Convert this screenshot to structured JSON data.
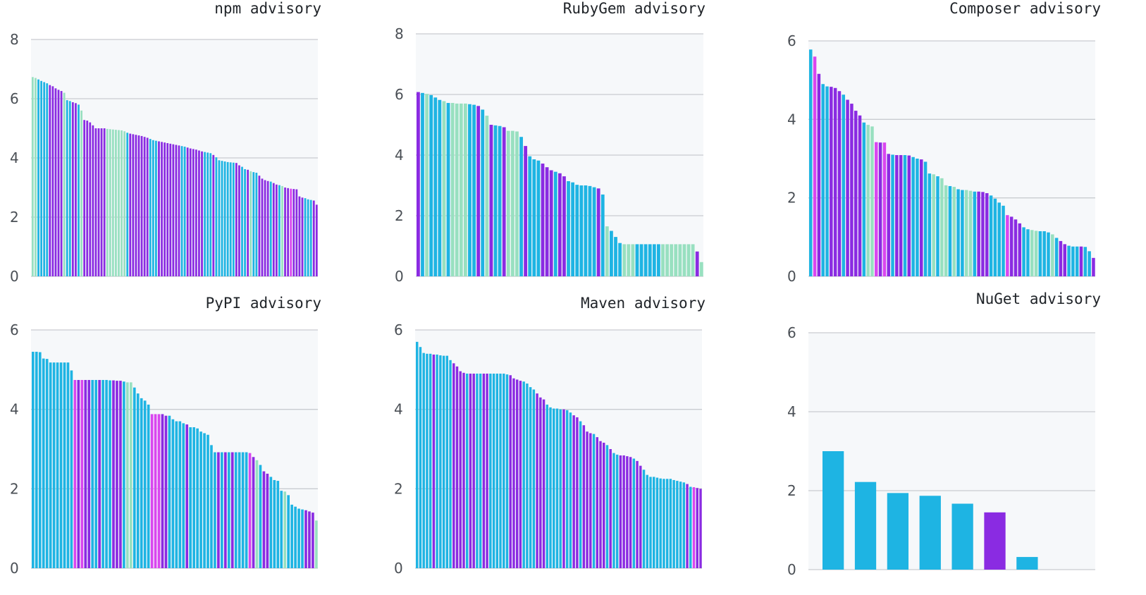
{
  "colors": {
    "plot_bg": "#f6f8fa",
    "grid": "#c9ccd1",
    "blue": "#1eb4e3",
    "purple": "#8a2be2",
    "mint": "#98e0c0",
    "magenta": "#d946ef",
    "axis_text": "#4a4f55"
  },
  "chart_data": [
    {
      "type": "bar",
      "title": "npm advisory",
      "ylim": [
        0,
        8
      ],
      "yticks": [
        "0",
        "2",
        "4",
        "6",
        "8"
      ],
      "grid": true,
      "values": [
        6.73,
        6.7,
        6.65,
        6.6,
        6.56,
        6.52,
        6.46,
        6.42,
        6.35,
        6.3,
        6.26,
        6.2,
        5.95,
        5.92,
        5.88,
        5.85,
        5.8,
        5.6,
        5.28,
        5.26,
        5.2,
        5.1,
        5.0,
        5.0,
        5.0,
        5.0,
        4.98,
        4.97,
        4.96,
        4.95,
        4.94,
        4.93,
        4.9,
        4.85,
        4.82,
        4.8,
        4.78,
        4.76,
        4.74,
        4.71,
        4.68,
        4.64,
        4.6,
        4.58,
        4.56,
        4.54,
        4.52,
        4.5,
        4.48,
        4.46,
        4.44,
        4.42,
        4.4,
        4.38,
        4.35,
        4.32,
        4.3,
        4.28,
        4.25,
        4.22,
        4.2,
        4.18,
        4.16,
        4.1,
        4.02,
        3.92,
        3.9,
        3.88,
        3.86,
        3.85,
        3.84,
        3.83,
        3.75,
        3.7,
        3.62,
        3.6,
        3.55,
        3.52,
        3.5,
        3.4,
        3.3,
        3.25,
        3.22,
        3.2,
        3.15,
        3.1,
        3.08,
        3.05,
        3.0,
        2.98,
        2.96,
        2.95,
        2.94,
        2.7,
        2.66,
        2.64,
        2.6,
        2.58,
        2.56,
        2.42
      ],
      "colors": [
        "mint",
        "mint",
        "blue",
        "blue",
        "blue",
        "blue",
        "purple",
        "purple",
        "purple",
        "purple",
        "purple",
        "mint",
        "blue",
        "blue",
        "purple",
        "purple",
        "blue",
        "mint",
        "purple",
        "purple",
        "purple",
        "purple",
        "purple",
        "purple",
        "purple",
        "purple",
        "mint",
        "mint",
        "mint",
        "mint",
        "mint",
        "mint",
        "mint",
        "blue",
        "purple",
        "purple",
        "purple",
        "purple",
        "purple",
        "purple",
        "purple",
        "blue",
        "blue",
        "blue",
        "purple",
        "purple",
        "purple",
        "purple",
        "purple",
        "purple",
        "purple",
        "purple",
        "blue",
        "blue",
        "purple",
        "purple",
        "purple",
        "purple",
        "purple",
        "purple",
        "blue",
        "blue",
        "blue",
        "purple",
        "blue",
        "blue",
        "blue",
        "blue",
        "blue",
        "blue",
        "blue",
        "purple",
        "purple",
        "blue",
        "blue",
        "purple",
        "mint",
        "blue",
        "blue",
        "purple",
        "purple",
        "purple",
        "purple",
        "blue",
        "purple",
        "purple",
        "blue",
        "mint",
        "purple",
        "purple",
        "magenta",
        "purple",
        "purple",
        "purple",
        "purple",
        "blue",
        "blue",
        "blue",
        "purple",
        "purple"
      ]
    },
    {
      "type": "bar",
      "title": "RubyGem advisory",
      "ylim": [
        0,
        8
      ],
      "yticks": [
        "0",
        "2",
        "4",
        "6",
        "8"
      ],
      "grid": true,
      "values": [
        6.08,
        6.05,
        6.02,
        5.98,
        5.9,
        5.82,
        5.78,
        5.72,
        5.72,
        5.7,
        5.7,
        5.7,
        5.68,
        5.66,
        5.62,
        5.5,
        5.3,
        5.0,
        4.98,
        4.96,
        4.92,
        4.8,
        4.8,
        4.78,
        4.6,
        4.3,
        3.96,
        3.86,
        3.82,
        3.72,
        3.6,
        3.5,
        3.45,
        3.4,
        3.3,
        3.14,
        3.1,
        3.02,
        3.0,
        3.0,
        2.98,
        2.94,
        2.9,
        2.7,
        1.65,
        1.5,
        1.3,
        1.1,
        1.06,
        1.06,
        1.06,
        1.06,
        1.06,
        1.06,
        1.06,
        1.06,
        1.06,
        1.06,
        1.06,
        1.06,
        1.06,
        1.06,
        1.06,
        1.06,
        1.06,
        0.82,
        0.47
      ],
      "colors": [
        "purple",
        "blue",
        "mint",
        "blue",
        "blue",
        "blue",
        "mint",
        "blue",
        "mint",
        "mint",
        "mint",
        "mint",
        "blue",
        "blue",
        "purple",
        "blue",
        "mint",
        "purple",
        "blue",
        "blue",
        "purple",
        "mint",
        "mint",
        "mint",
        "blue",
        "purple",
        "blue",
        "blue",
        "blue",
        "purple",
        "purple",
        "purple",
        "blue",
        "purple",
        "purple",
        "blue",
        "blue",
        "blue",
        "blue",
        "blue",
        "blue",
        "blue",
        "purple",
        "blue",
        "mint",
        "blue",
        "blue",
        "blue",
        "mint",
        "mint",
        "mint",
        "blue",
        "blue",
        "blue",
        "blue",
        "blue",
        "blue",
        "mint",
        "mint",
        "mint",
        "mint",
        "mint",
        "mint",
        "mint",
        "mint",
        "purple",
        "mint"
      ]
    },
    {
      "type": "bar",
      "title": "Composer advisory",
      "ylim": [
        0,
        6
      ],
      "yticks": [
        "0",
        "2",
        "4",
        "6"
      ],
      "grid": true,
      "values": [
        5.78,
        5.6,
        5.16,
        4.9,
        4.84,
        4.83,
        4.8,
        4.72,
        4.63,
        4.5,
        4.4,
        4.22,
        4.1,
        3.92,
        3.86,
        3.82,
        3.42,
        3.41,
        3.41,
        3.12,
        3.1,
        3.09,
        3.09,
        3.09,
        3.08,
        3.04,
        3.0,
        2.98,
        2.92,
        2.62,
        2.6,
        2.55,
        2.5,
        2.32,
        2.3,
        2.28,
        2.22,
        2.2,
        2.2,
        2.18,
        2.16,
        2.16,
        2.15,
        2.12,
        2.06,
        1.98,
        1.88,
        1.8,
        1.56,
        1.52,
        1.45,
        1.35,
        1.25,
        1.2,
        1.18,
        1.16,
        1.15,
        1.15,
        1.12,
        1.07,
        0.98,
        0.9,
        0.82,
        0.78,
        0.76,
        0.76,
        0.76,
        0.75,
        0.64,
        0.47
      ],
      "colors": [
        "blue",
        "magenta",
        "purple",
        "blue",
        "blue",
        "purple",
        "purple",
        "purple",
        "blue",
        "purple",
        "purple",
        "purple",
        "purple",
        "blue",
        "mint",
        "mint",
        "magenta",
        "purple",
        "magenta",
        "purple",
        "blue",
        "purple",
        "purple",
        "blue",
        "purple",
        "blue",
        "blue",
        "purple",
        "blue",
        "blue",
        "mint",
        "blue",
        "mint",
        "mint",
        "blue",
        "mint",
        "blue",
        "blue",
        "mint",
        "mint",
        "blue",
        "purple",
        "purple",
        "purple",
        "blue",
        "blue",
        "blue",
        "blue",
        "magenta",
        "purple",
        "purple",
        "purple",
        "blue",
        "blue",
        "mint",
        "mint",
        "blue",
        "blue",
        "blue",
        "mint",
        "blue",
        "purple",
        "purple",
        "blue",
        "blue",
        "blue",
        "purple",
        "blue",
        "blue",
        "purple"
      ]
    },
    {
      "type": "bar",
      "title": "PyPI advisory",
      "ylim": [
        0,
        6
      ],
      "yticks": [
        "0",
        "2",
        "4",
        "6"
      ],
      "grid": true,
      "values": [
        5.45,
        5.45,
        5.44,
        5.28,
        5.27,
        5.18,
        5.18,
        5.18,
        5.18,
        5.18,
        5.18,
        4.98,
        4.74,
        4.74,
        4.74,
        4.74,
        4.74,
        4.74,
        4.74,
        4.74,
        4.74,
        4.74,
        4.73,
        4.73,
        4.72,
        4.72,
        4.7,
        4.68,
        4.68,
        4.55,
        4.4,
        4.28,
        4.22,
        4.12,
        3.88,
        3.88,
        3.88,
        3.88,
        3.84,
        3.84,
        3.75,
        3.7,
        3.7,
        3.65,
        3.62,
        3.55,
        3.55,
        3.52,
        3.44,
        3.4,
        3.36,
        3.1,
        2.92,
        2.92,
        2.92,
        2.92,
        2.92,
        2.92,
        2.92,
        2.92,
        2.92,
        2.92,
        2.9,
        2.8,
        2.72,
        2.6,
        2.44,
        2.38,
        2.3,
        2.22,
        2.2,
        1.95,
        1.93,
        1.84,
        1.6,
        1.55,
        1.5,
        1.48,
        1.46,
        1.43,
        1.4,
        1.2
      ],
      "colors": [
        "blue",
        "blue",
        "blue",
        "blue",
        "blue",
        "blue",
        "blue",
        "blue",
        "blue",
        "blue",
        "blue",
        "blue",
        "magenta",
        "purple",
        "magenta",
        "purple",
        "purple",
        "blue",
        "blue",
        "purple",
        "blue",
        "blue",
        "blue",
        "purple",
        "purple",
        "purple",
        "blue",
        "mint",
        "mint",
        "blue",
        "blue",
        "blue",
        "blue",
        "blue",
        "magenta",
        "magenta",
        "magenta",
        "purple",
        "purple",
        "blue",
        "blue",
        "blue",
        "blue",
        "blue",
        "purple",
        "blue",
        "blue",
        "blue",
        "blue",
        "blue",
        "blue",
        "blue",
        "blue",
        "purple",
        "blue",
        "purple",
        "blue",
        "purple",
        "blue",
        "blue",
        "blue",
        "blue",
        "magenta",
        "purple",
        "mint",
        "blue",
        "purple",
        "purple",
        "blue",
        "blue",
        "blue",
        "blue",
        "mint",
        "blue",
        "blue",
        "blue",
        "blue",
        "blue",
        "purple",
        "purple",
        "purple",
        "mint"
      ]
    },
    {
      "type": "bar",
      "title": "Maven advisory",
      "ylim": [
        0,
        6
      ],
      "yticks": [
        "0",
        "2",
        "4",
        "6"
      ],
      "grid": true,
      "values": [
        5.7,
        5.57,
        5.42,
        5.4,
        5.4,
        5.38,
        5.38,
        5.36,
        5.35,
        5.35,
        5.24,
        5.16,
        5.08,
        4.96,
        4.92,
        4.9,
        4.9,
        4.9,
        4.9,
        4.9,
        4.9,
        4.9,
        4.9,
        4.9,
        4.9,
        4.9,
        4.9,
        4.88,
        4.86,
        4.78,
        4.75,
        4.72,
        4.7,
        4.65,
        4.56,
        4.5,
        4.4,
        4.3,
        4.25,
        4.12,
        4.05,
        4.02,
        4.02,
        4.0,
        4.0,
        3.98,
        3.92,
        3.85,
        3.8,
        3.7,
        3.6,
        3.44,
        3.4,
        3.38,
        3.3,
        3.2,
        3.16,
        3.1,
        3.0,
        2.9,
        2.86,
        2.84,
        2.84,
        2.82,
        2.8,
        2.76,
        2.7,
        2.58,
        2.48,
        2.35,
        2.3,
        2.3,
        2.28,
        2.26,
        2.25,
        2.25,
        2.25,
        2.22,
        2.2,
        2.18,
        2.16,
        2.12,
        2.05,
        2.04,
        2.02,
        2.0
      ],
      "colors": [
        "blue",
        "blue",
        "blue",
        "blue",
        "blue",
        "purple",
        "blue",
        "blue",
        "blue",
        "blue",
        "blue",
        "purple",
        "purple",
        "purple",
        "purple",
        "blue",
        "purple",
        "purple",
        "blue",
        "blue",
        "purple",
        "purple",
        "blue",
        "blue",
        "blue",
        "blue",
        "blue",
        "blue",
        "purple",
        "purple",
        "purple",
        "purple",
        "blue",
        "blue",
        "blue",
        "blue",
        "purple",
        "purple",
        "purple",
        "blue",
        "blue",
        "blue",
        "blue",
        "blue",
        "purple",
        "blue",
        "blue",
        "purple",
        "purple",
        "blue",
        "purple",
        "purple",
        "purple",
        "blue",
        "purple",
        "purple",
        "purple",
        "blue",
        "purple",
        "blue",
        "blue",
        "purple",
        "purple",
        "purple",
        "purple",
        "blue",
        "purple",
        "purple",
        "blue",
        "blue",
        "blue",
        "blue",
        "blue",
        "blue",
        "blue",
        "blue",
        "blue",
        "blue",
        "blue",
        "blue",
        "blue",
        "purple",
        "blue",
        "magenta",
        "purple",
        "purple"
      ]
    },
    {
      "type": "bar",
      "title": "NuGet advisory",
      "ylim": [
        0,
        6
      ],
      "yticks": [
        "0",
        "2",
        "4",
        "6"
      ],
      "grid": true,
      "values": [
        3.0,
        2.22,
        1.94,
        1.87,
        1.67,
        1.45,
        0.32
      ],
      "colors": [
        "blue",
        "blue",
        "blue",
        "blue",
        "blue",
        "purple",
        "blue"
      ]
    }
  ]
}
